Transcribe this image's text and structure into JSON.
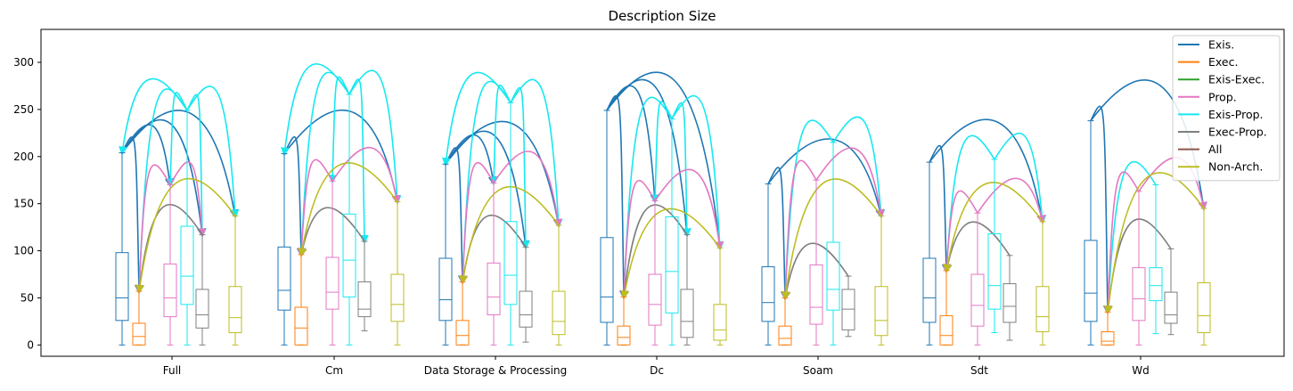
{
  "chart_data": {
    "type": "box",
    "title": "Description Size",
    "xlabel": "",
    "ylabel": "",
    "ylim": [
      -12,
      335
    ],
    "yticks": [
      0,
      50,
      100,
      150,
      200,
      250,
      300
    ],
    "categories": [
      "Full",
      "Cm",
      "Data Storage & Processing",
      "Dc",
      "Soam",
      "Sdt",
      "Wd"
    ],
    "legend_position": "top-right",
    "grid": false,
    "series": [
      {
        "name": "Exis.",
        "color": "#1f77b4",
        "boxes": [
          {
            "whislo": 0,
            "q1": 26,
            "med": 50,
            "q3": 98,
            "whishi": 204
          },
          {
            "whislo": 0,
            "q1": 37,
            "med": 58,
            "q3": 104,
            "whishi": 203
          },
          {
            "whislo": 0,
            "q1": 26,
            "med": 48,
            "q3": 92,
            "whishi": 192
          },
          {
            "whislo": 0,
            "q1": 24,
            "med": 51,
            "q3": 114,
            "whishi": 249
          },
          {
            "whislo": 0,
            "q1": 25,
            "med": 45,
            "q3": 83,
            "whishi": 171
          },
          {
            "whislo": 0,
            "q1": 24,
            "med": 50,
            "q3": 92,
            "whishi": 194
          },
          {
            "whislo": 0,
            "q1": 25,
            "med": 55,
            "q3": 111,
            "whishi": 238
          }
        ]
      },
      {
        "name": "Exec.",
        "color": "#ff7f0e",
        "boxes": [
          {
            "whislo": 0,
            "q1": 0,
            "med": 9,
            "q3": 23,
            "whishi": 57
          },
          {
            "whislo": 0,
            "q1": 0,
            "med": 18,
            "q3": 40,
            "whishi": 96
          },
          {
            "whislo": 0,
            "q1": 0,
            "med": 10,
            "q3": 26,
            "whishi": 67
          },
          {
            "whislo": 0,
            "q1": 0,
            "med": 8,
            "q3": 20,
            "whishi": 51
          },
          {
            "whislo": 0,
            "q1": 0,
            "med": 7,
            "q3": 20,
            "whishi": 50
          },
          {
            "whislo": 0,
            "q1": 0,
            "med": 10,
            "q3": 31,
            "whishi": 79
          },
          {
            "whislo": 0,
            "q1": 0,
            "med": 4,
            "q3": 14,
            "whishi": 35
          }
        ]
      },
      {
        "name": "Exis-Exec.",
        "color": "#2ca02c",
        "boxes": []
      },
      {
        "name": "Prop.",
        "color": "#e377c2",
        "boxes": [
          {
            "whislo": 0,
            "q1": 30,
            "med": 50,
            "q3": 86,
            "whishi": 170
          },
          {
            "whislo": 0,
            "q1": 38,
            "med": 56,
            "q3": 93,
            "whishi": 174
          },
          {
            "whislo": 0,
            "q1": 32,
            "med": 51,
            "q3": 87,
            "whishi": 172
          },
          {
            "whislo": 0,
            "q1": 21,
            "med": 43,
            "q3": 75,
            "whishi": 153
          },
          {
            "whislo": 0,
            "q1": 22,
            "med": 40,
            "q3": 85,
            "whishi": 175
          },
          {
            "whislo": 0,
            "q1": 20,
            "med": 42,
            "q3": 75,
            "whishi": 140
          },
          {
            "whislo": 0,
            "q1": 26,
            "med": 49,
            "q3": 82,
            "whishi": 163
          }
        ]
      },
      {
        "name": "Exis-Prop.",
        "color": "#17e8f0",
        "boxes": [
          {
            "whislo": 0,
            "q1": 43,
            "med": 73,
            "q3": 126,
            "whishi": 249
          },
          {
            "whislo": 0,
            "q1": 51,
            "med": 90,
            "q3": 139,
            "whishi": 266
          },
          {
            "whislo": 0,
            "q1": 43,
            "med": 74,
            "q3": 131,
            "whishi": 257
          },
          {
            "whislo": 0,
            "q1": 34,
            "med": 78,
            "q3": 136,
            "whishi": 240
          },
          {
            "whislo": 0,
            "q1": 37,
            "med": 59,
            "q3": 109,
            "whishi": 215
          },
          {
            "whislo": 13,
            "q1": 38,
            "med": 63,
            "q3": 118,
            "whishi": 197
          },
          {
            "whislo": 12,
            "q1": 47,
            "med": 63,
            "q3": 82,
            "whishi": 170
          }
        ]
      },
      {
        "name": "Exec-Prop.",
        "color": "#7f7f7f",
        "boxes": [
          {
            "whislo": 0,
            "q1": 18,
            "med": 32,
            "q3": 59,
            "whishi": 117
          },
          {
            "whislo": 15,
            "q1": 30,
            "med": 38,
            "q3": 67,
            "whishi": 110
          },
          {
            "whislo": 3,
            "q1": 19,
            "med": 32,
            "q3": 57,
            "whishi": 104
          },
          {
            "whislo": 0,
            "q1": 8,
            "med": 25,
            "q3": 59,
            "whishi": 117
          },
          {
            "whislo": 9,
            "q1": 16,
            "med": 38,
            "q3": 59,
            "whishi": 73
          },
          {
            "whislo": 5,
            "q1": 24,
            "med": 41,
            "q3": 65,
            "whishi": 95
          },
          {
            "whislo": 11,
            "q1": 23,
            "med": 32,
            "q3": 56,
            "whishi": 102
          }
        ]
      },
      {
        "name": "All",
        "color": "#8c564b",
        "boxes": []
      },
      {
        "name": "Non-Arch.",
        "color": "#bcbd22",
        "boxes": [
          {
            "whislo": 0,
            "q1": 13,
            "med": 29,
            "q3": 62,
            "whishi": 137
          },
          {
            "whislo": 0,
            "q1": 25,
            "med": 43,
            "q3": 75,
            "whishi": 152
          },
          {
            "whislo": 0,
            "q1": 11,
            "med": 25,
            "q3": 57,
            "whishi": 127
          },
          {
            "whislo": 0,
            "q1": 5,
            "med": 16,
            "q3": 43,
            "whishi": 103
          },
          {
            "whislo": 0,
            "q1": 10,
            "med": 26,
            "q3": 62,
            "whishi": 137
          },
          {
            "whislo": 0,
            "q1": 14,
            "med": 30,
            "q3": 62,
            "whishi": 131
          },
          {
            "whislo": 0,
            "q1": 13,
            "med": 31,
            "q3": 66,
            "whishi": 145
          }
        ]
      }
    ],
    "arrows": [
      {
        "group": 0,
        "from": 0,
        "to": 1,
        "color": "#1f77b4"
      },
      {
        "group": 0,
        "from": 0,
        "to": 3,
        "color": "#1f77b4"
      },
      {
        "group": 0,
        "from": 0,
        "to": 5,
        "color": "#1f77b4"
      },
      {
        "group": 0,
        "from": 0,
        "to": 7,
        "color": "#1f77b4"
      },
      {
        "group": 0,
        "from": 4,
        "to": 0,
        "color": "#17e8f0"
      },
      {
        "group": 0,
        "from": 4,
        "to": 1,
        "color": "#17e8f0"
      },
      {
        "group": 0,
        "from": 4,
        "to": 3,
        "color": "#17e8f0"
      },
      {
        "group": 0,
        "from": 4,
        "to": 5,
        "color": "#17e8f0"
      },
      {
        "group": 0,
        "from": 4,
        "to": 7,
        "color": "#17e8f0"
      },
      {
        "group": 0,
        "from": 3,
        "to": 1,
        "color": "#e377c2"
      },
      {
        "group": 0,
        "from": 3,
        "to": 5,
        "color": "#e377c2"
      },
      {
        "group": 0,
        "from": 5,
        "to": 1,
        "color": "#7f7f7f"
      },
      {
        "group": 0,
        "from": 7,
        "to": 1,
        "color": "#bcbd22"
      },
      {
        "group": 1,
        "from": 0,
        "to": 1,
        "color": "#1f77b4"
      },
      {
        "group": 1,
        "from": 0,
        "to": 7,
        "color": "#1f77b4"
      },
      {
        "group": 1,
        "from": 4,
        "to": 0,
        "color": "#17e8f0"
      },
      {
        "group": 1,
        "from": 4,
        "to": 1,
        "color": "#17e8f0"
      },
      {
        "group": 1,
        "from": 4,
        "to": 3,
        "color": "#17e8f0"
      },
      {
        "group": 1,
        "from": 4,
        "to": 5,
        "color": "#17e8f0"
      },
      {
        "group": 1,
        "from": 4,
        "to": 7,
        "color": "#17e8f0"
      },
      {
        "group": 1,
        "from": 3,
        "to": 1,
        "color": "#e377c2"
      },
      {
        "group": 1,
        "from": 3,
        "to": 7,
        "color": "#e377c2"
      },
      {
        "group": 1,
        "from": 5,
        "to": 1,
        "color": "#7f7f7f"
      },
      {
        "group": 1,
        "from": 7,
        "to": 1,
        "color": "#bcbd22"
      },
      {
        "group": 2,
        "from": 0,
        "to": 1,
        "color": "#1f77b4"
      },
      {
        "group": 2,
        "from": 0,
        "to": 3,
        "color": "#1f77b4"
      },
      {
        "group": 2,
        "from": 0,
        "to": 5,
        "color": "#1f77b4"
      },
      {
        "group": 2,
        "from": 0,
        "to": 7,
        "color": "#1f77b4"
      },
      {
        "group": 2,
        "from": 4,
        "to": 0,
        "color": "#17e8f0"
      },
      {
        "group": 2,
        "from": 4,
        "to": 1,
        "color": "#17e8f0"
      },
      {
        "group": 2,
        "from": 4,
        "to": 3,
        "color": "#17e8f0"
      },
      {
        "group": 2,
        "from": 4,
        "to": 5,
        "color": "#17e8f0"
      },
      {
        "group": 2,
        "from": 4,
        "to": 7,
        "color": "#17e8f0"
      },
      {
        "group": 2,
        "from": 3,
        "to": 1,
        "color": "#e377c2"
      },
      {
        "group": 2,
        "from": 3,
        "to": 7,
        "color": "#e377c2"
      },
      {
        "group": 2,
        "from": 5,
        "to": 1,
        "color": "#7f7f7f"
      },
      {
        "group": 2,
        "from": 7,
        "to": 1,
        "color": "#bcbd22"
      },
      {
        "group": 3,
        "from": 0,
        "to": 1,
        "color": "#1f77b4"
      },
      {
        "group": 3,
        "from": 0,
        "to": 3,
        "color": "#1f77b4"
      },
      {
        "group": 3,
        "from": 0,
        "to": 5,
        "color": "#1f77b4"
      },
      {
        "group": 3,
        "from": 0,
        "to": 7,
        "color": "#1f77b4"
      },
      {
        "group": 3,
        "from": 4,
        "to": 1,
        "color": "#17e8f0"
      },
      {
        "group": 3,
        "from": 4,
        "to": 3,
        "color": "#17e8f0"
      },
      {
        "group": 3,
        "from": 4,
        "to": 5,
        "color": "#17e8f0"
      },
      {
        "group": 3,
        "from": 4,
        "to": 7,
        "color": "#17e8f0"
      },
      {
        "group": 3,
        "from": 3,
        "to": 1,
        "color": "#e377c2"
      },
      {
        "group": 3,
        "from": 3,
        "to": 7,
        "color": "#e377c2"
      },
      {
        "group": 3,
        "from": 5,
        "to": 1,
        "color": "#7f7f7f"
      },
      {
        "group": 3,
        "from": 7,
        "to": 1,
        "color": "#bcbd22"
      },
      {
        "group": 4,
        "from": 0,
        "to": 1,
        "color": "#1f77b4"
      },
      {
        "group": 4,
        "from": 0,
        "to": 7,
        "color": "#1f77b4"
      },
      {
        "group": 4,
        "from": 4,
        "to": 1,
        "color": "#17e8f0"
      },
      {
        "group": 4,
        "from": 4,
        "to": 7,
        "color": "#17e8f0"
      },
      {
        "group": 4,
        "from": 3,
        "to": 1,
        "color": "#e377c2"
      },
      {
        "group": 4,
        "from": 3,
        "to": 7,
        "color": "#e377c2"
      },
      {
        "group": 4,
        "from": 5,
        "to": 1,
        "color": "#7f7f7f"
      },
      {
        "group": 4,
        "from": 7,
        "to": 1,
        "color": "#bcbd22"
      },
      {
        "group": 5,
        "from": 0,
        "to": 1,
        "color": "#1f77b4"
      },
      {
        "group": 5,
        "from": 0,
        "to": 7,
        "color": "#1f77b4"
      },
      {
        "group": 5,
        "from": 4,
        "to": 1,
        "color": "#17e8f0"
      },
      {
        "group": 5,
        "from": 4,
        "to": 7,
        "color": "#17e8f0"
      },
      {
        "group": 5,
        "from": 3,
        "to": 1,
        "color": "#e377c2"
      },
      {
        "group": 5,
        "from": 3,
        "to": 7,
        "color": "#e377c2"
      },
      {
        "group": 5,
        "from": 5,
        "to": 1,
        "color": "#7f7f7f"
      },
      {
        "group": 5,
        "from": 7,
        "to": 1,
        "color": "#bcbd22"
      },
      {
        "group": 6,
        "from": 0,
        "to": 1,
        "color": "#1f77b4"
      },
      {
        "group": 6,
        "from": 0,
        "to": 7,
        "color": "#1f77b4"
      },
      {
        "group": 6,
        "from": 4,
        "to": 1,
        "color": "#17e8f0"
      },
      {
        "group": 6,
        "from": 3,
        "to": 1,
        "color": "#e377c2"
      },
      {
        "group": 6,
        "from": 3,
        "to": 7,
        "color": "#e377c2"
      },
      {
        "group": 6,
        "from": 5,
        "to": 1,
        "color": "#7f7f7f"
      },
      {
        "group": 6,
        "from": 7,
        "to": 1,
        "color": "#bcbd22"
      }
    ]
  }
}
